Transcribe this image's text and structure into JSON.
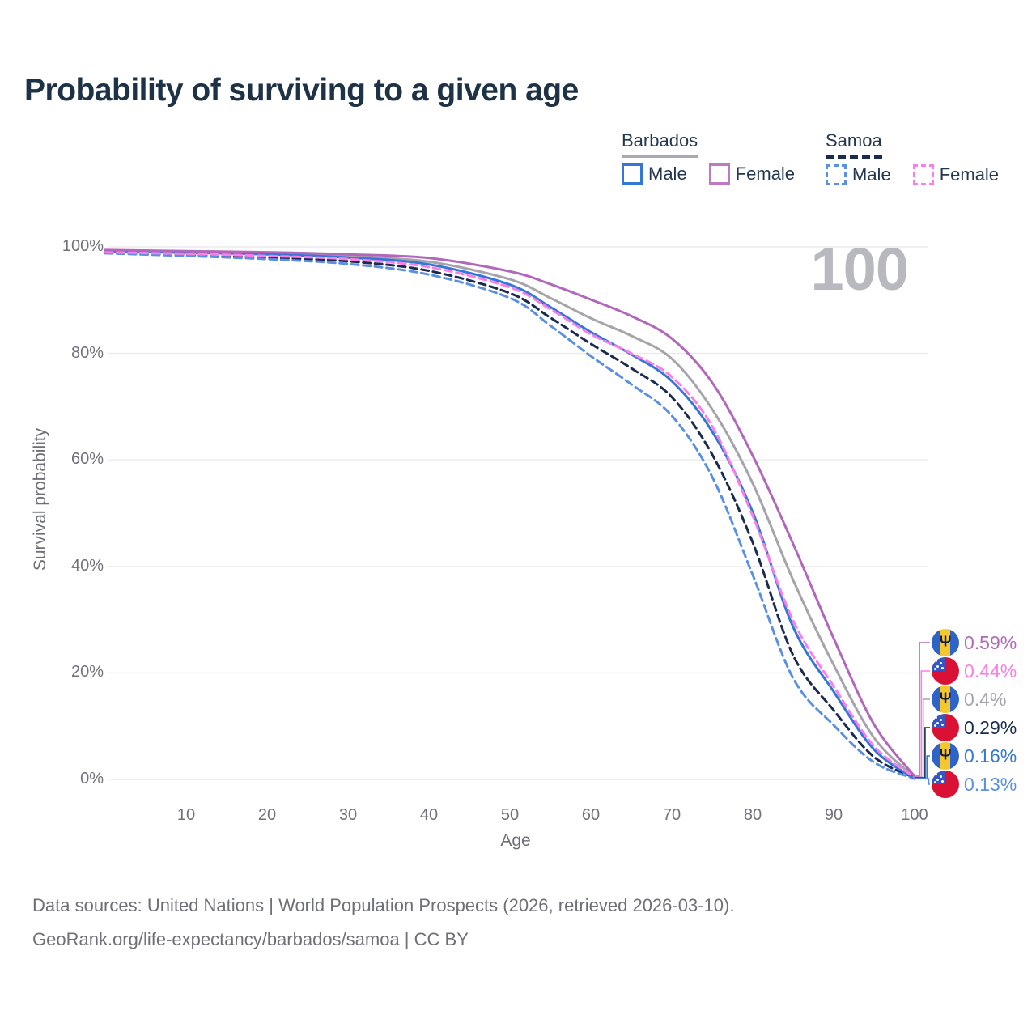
{
  "title": "Probability of surviving to a given age",
  "watermark_age": "100",
  "colors": {
    "title_text": "#1d3147",
    "axis_text": "#71717b",
    "muted_text": "#6f6f79",
    "grid": "#ebebef",
    "watermark": "#b8b8bf",
    "legend_text": "#233750",
    "barbados_underline": "#a9a9af",
    "samoa_underline": "#1b2b4d"
  },
  "legend": {
    "groups": [
      {
        "label": "Barbados",
        "line_style": "solid",
        "items": [
          {
            "label": "Male",
            "color": "#3377d9",
            "dashed": false
          },
          {
            "label": "Female",
            "color": "#bd79c2",
            "dashed": false
          }
        ]
      },
      {
        "label": "Samoa",
        "line_style": "dashed",
        "items": [
          {
            "label": "Male",
            "color": "#5a90e4",
            "dashed": true
          },
          {
            "label": "Female",
            "color": "#fb7de9",
            "dashed": true
          }
        ]
      }
    ]
  },
  "chart_data": {
    "type": "line",
    "title": "Probability of surviving to a given age",
    "xlabel": "Age",
    "ylabel": "Survival probability",
    "xlim": [
      0,
      100
    ],
    "ylim": [
      0,
      100
    ],
    "grid": "horizontal",
    "legend_position": "top-right",
    "x_tick_values": [
      10,
      20,
      30,
      40,
      50,
      60,
      70,
      80,
      90,
      100
    ],
    "x_ticks": [
      "10",
      "20",
      "30",
      "40",
      "50",
      "60",
      "70",
      "80",
      "90",
      "100"
    ],
    "y_grid_values": [
      100,
      80,
      60,
      40,
      20,
      0
    ],
    "y_tick_labels": [
      "100%",
      "80%",
      "60%",
      "40%",
      "20%",
      "0%"
    ],
    "ages": [
      0,
      10,
      20,
      30,
      40,
      50,
      55,
      60,
      65,
      70,
      75,
      80,
      85,
      90,
      95,
      100
    ],
    "series": [
      {
        "id": "barbados-female",
        "country": "Barbados",
        "sex": "Female",
        "color": "#b168ba",
        "dashed": false,
        "flag": "barbados",
        "end_label": "0.59%",
        "values": [
          99.4,
          99.2,
          99.0,
          98.6,
          97.9,
          95.4,
          93.0,
          90.1,
          87.0,
          82.8,
          74.5,
          60.8,
          44.2,
          26.5,
          10.3,
          0.59
        ]
      },
      {
        "id": "samoa-female",
        "country": "Samoa",
        "sex": "Female",
        "color": "#fb7de9",
        "dashed": true,
        "flag": "samoa",
        "end_label": "0.44%",
        "values": [
          99.0,
          98.7,
          98.3,
          97.7,
          96.2,
          92.4,
          88.3,
          83.6,
          80.0,
          75.6,
          66.3,
          49.5,
          29.8,
          17.5,
          6.2,
          0.44
        ]
      },
      {
        "id": "barbados-total",
        "country": "Barbados",
        "sex": "Both sexes",
        "color": "#a4a4aa",
        "dashed": false,
        "flag": "barbados",
        "end_label": "0.4%",
        "values": [
          99.2,
          99.0,
          98.7,
          98.2,
          97.2,
          93.9,
          90.4,
          86.6,
          83.3,
          79.0,
          69.5,
          55.6,
          37.4,
          21.5,
          7.8,
          0.4
        ]
      },
      {
        "id": "samoa-total",
        "country": "Samoa",
        "sex": "Both sexes",
        "color": "#1b2b4d",
        "dashed": true,
        "flag": "samoa",
        "end_label": "0.29%",
        "values": [
          98.9,
          98.5,
          98.0,
          97.3,
          95.5,
          91.3,
          86.7,
          81.8,
          77.2,
          71.8,
          61.0,
          44.5,
          23.3,
          13.0,
          4.2,
          0.29
        ]
      },
      {
        "id": "barbados-male",
        "country": "Barbados",
        "sex": "Male",
        "color": "#3377d9",
        "dashed": false,
        "flag": "barbados",
        "end_label": "0.16%",
        "values": [
          99.1,
          98.9,
          98.6,
          98.0,
          96.7,
          92.9,
          88.7,
          84.0,
          79.8,
          74.8,
          65.3,
          50.2,
          28.6,
          16.5,
          5.6,
          0.16
        ]
      },
      {
        "id": "samoa-male",
        "country": "Samoa",
        "sex": "Male",
        "color": "#5a90e4",
        "dashed": true,
        "flag": "samoa",
        "end_label": "0.13%",
        "values": [
          98.8,
          98.3,
          97.7,
          96.8,
          94.8,
          90.4,
          85.2,
          79.5,
          74.2,
          68.3,
          56.8,
          38.4,
          19.0,
          10.2,
          3.2,
          0.13
        ]
      }
    ]
  },
  "footer": {
    "line1": "Data sources: United Nations | World Population Prospects (2026, retrieved 2026-03-10).",
    "line2": "GeoRank.org/life-expectancy/barbados/samoa | CC BY"
  }
}
